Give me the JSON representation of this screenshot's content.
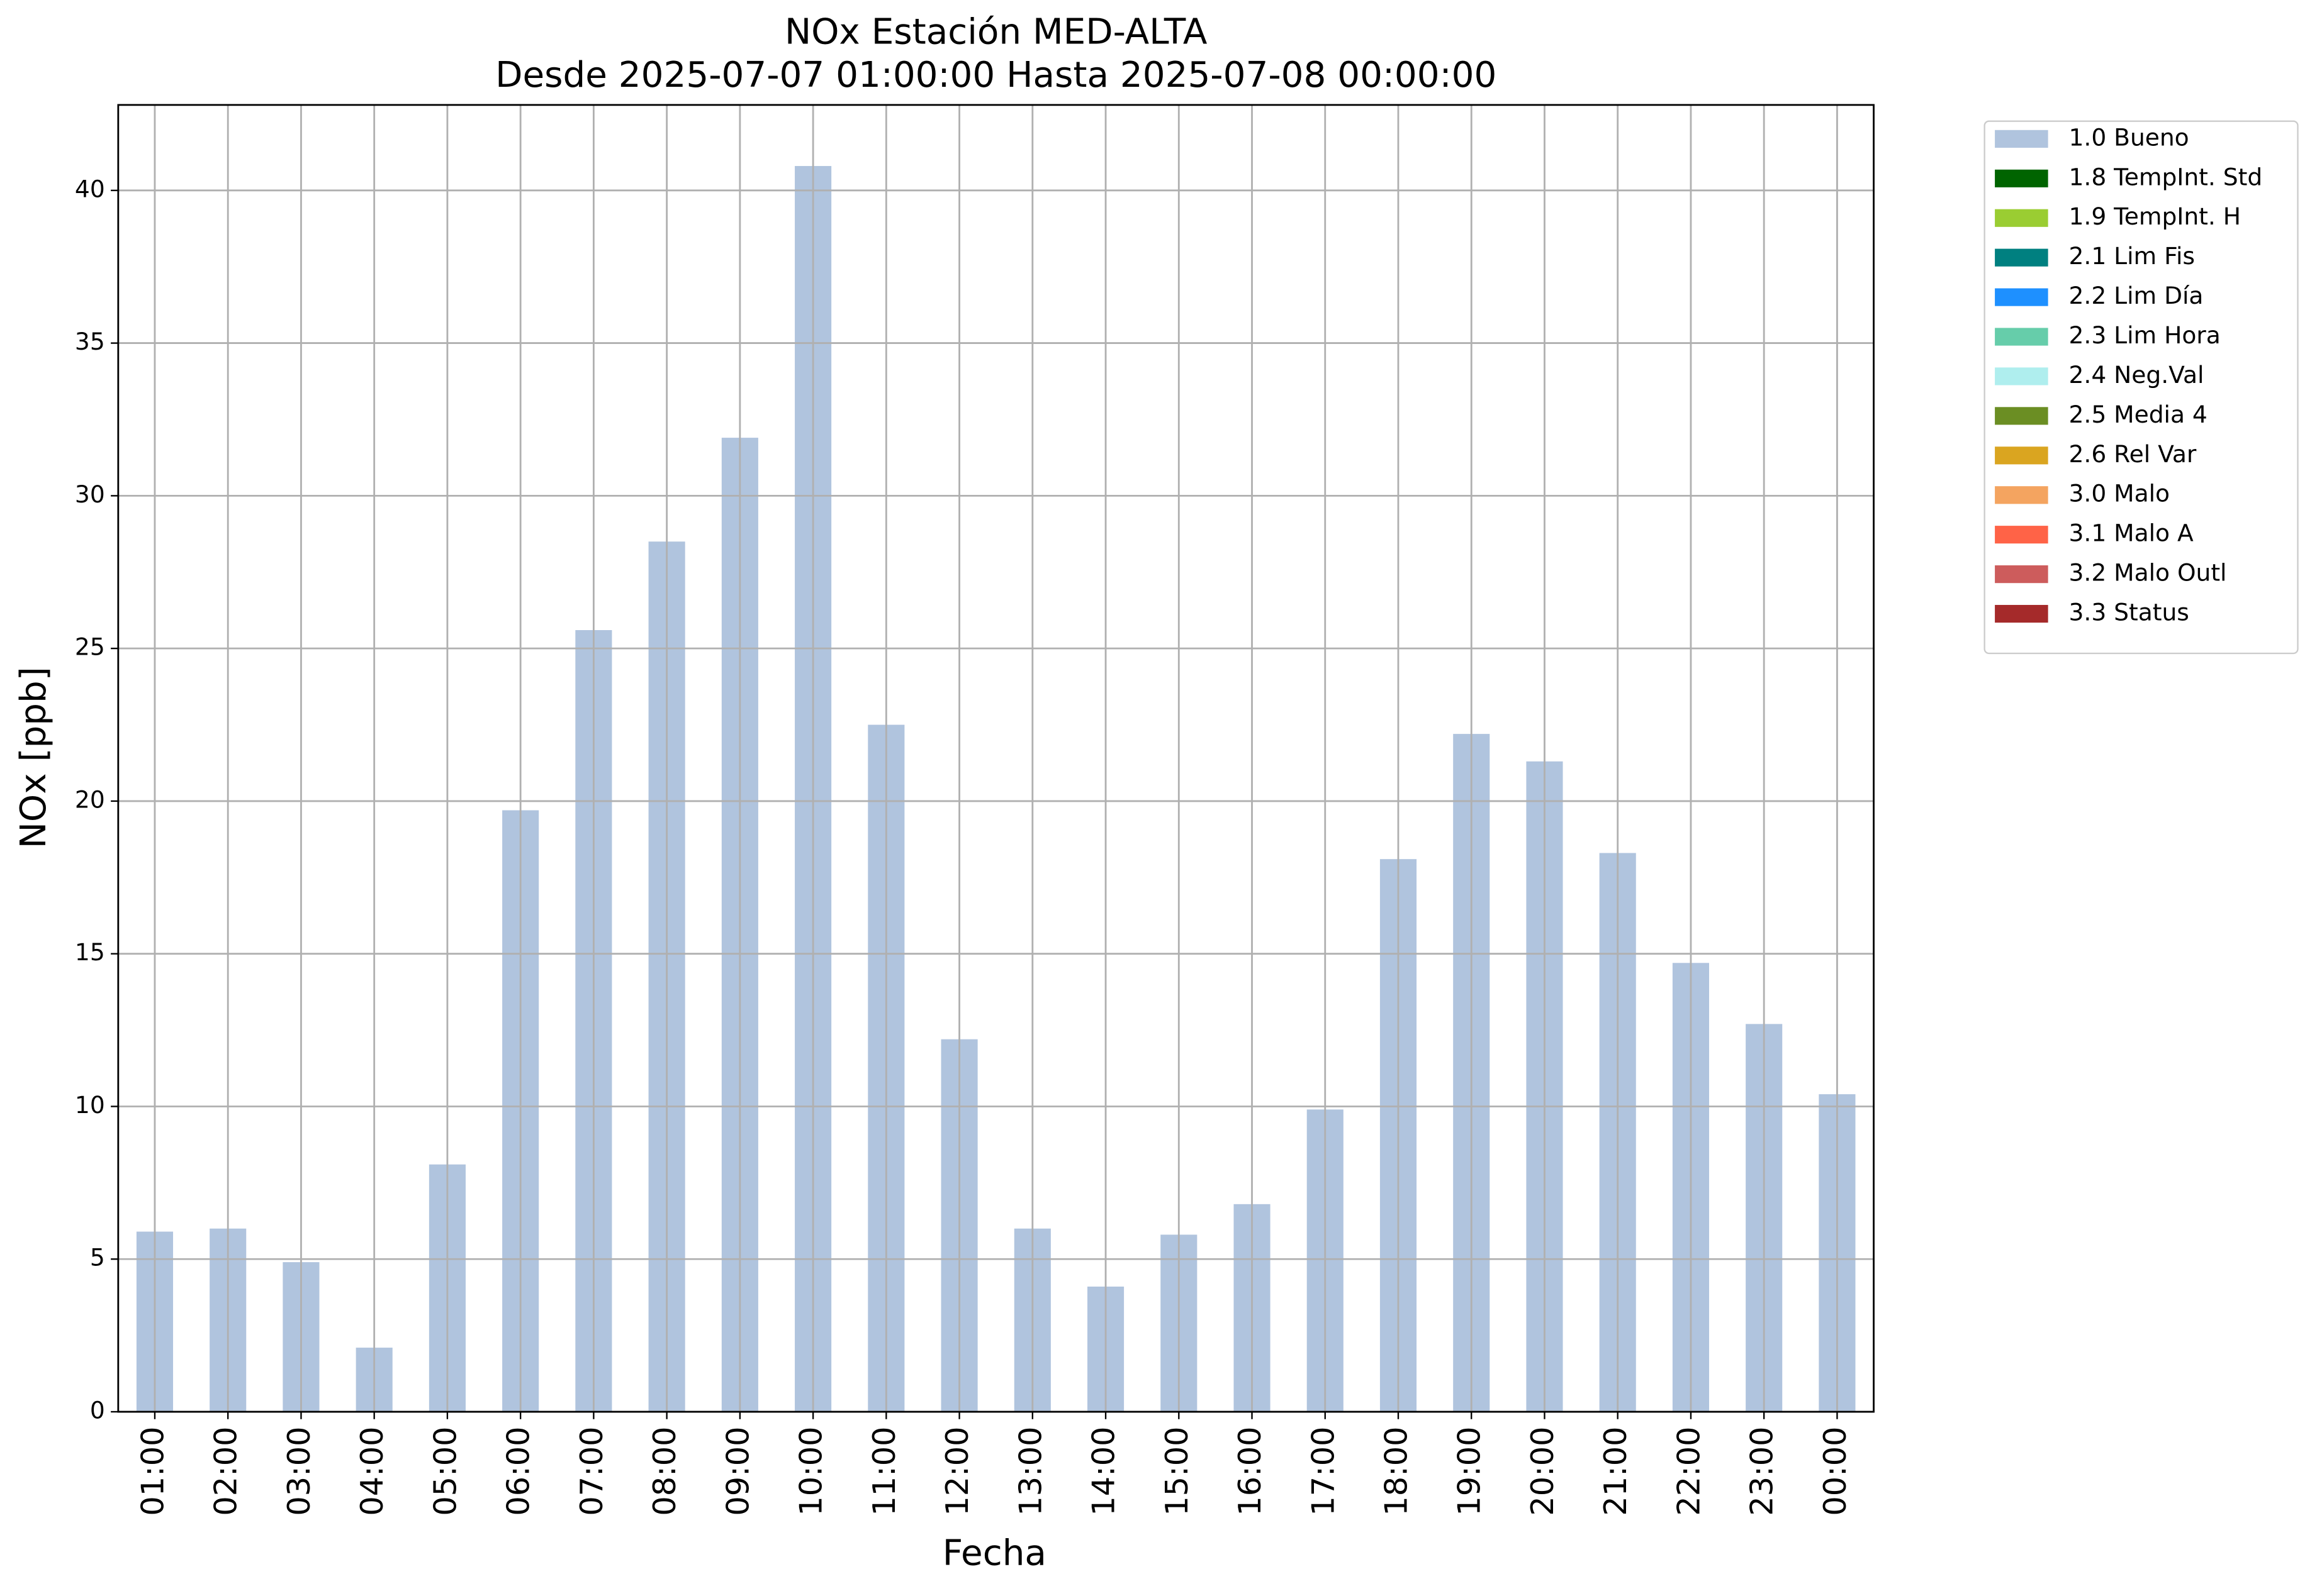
{
  "chart_data": {
    "type": "bar",
    "title": "NOx Estación MED-ALTA",
    "subtitle": "Desde 2025-07-07 01:00:00 Hasta 2025-07-08 00:00:00",
    "x_label": "Fecha",
    "y_label": "NOx [ppb]",
    "categories": [
      "01:00",
      "02:00",
      "03:00",
      "04:00",
      "05:00",
      "06:00",
      "07:00",
      "08:00",
      "09:00",
      "10:00",
      "11:00",
      "12:00",
      "13:00",
      "14:00",
      "15:00",
      "16:00",
      "17:00",
      "18:00",
      "19:00",
      "20:00",
      "21:00",
      "22:00",
      "23:00",
      "00:00"
    ],
    "series": [
      {
        "name": "1.0 Bueno",
        "color": "#b0c4de",
        "values": [
          5.9,
          6.0,
          4.9,
          2.1,
          8.1,
          19.7,
          25.6,
          28.5,
          31.9,
          40.8,
          22.5,
          12.2,
          6.0,
          4.1,
          5.8,
          6.8,
          9.9,
          18.1,
          22.2,
          21.3,
          18.3,
          14.7,
          12.7,
          10.4
        ]
      },
      {
        "name": "1.8 TempInt. Std",
        "color": "#006400"
      },
      {
        "name": "1.9 TempInt. H",
        "color": "#9acd32"
      },
      {
        "name": "2.1 Lim Fis",
        "color": "#008080"
      },
      {
        "name": "2.2 Lim Día",
        "color": "#1e90ff"
      },
      {
        "name": "2.3 Lim Hora",
        "color": "#66cdaa"
      },
      {
        "name": "2.4 Neg.Val",
        "color": "#afeeee"
      },
      {
        "name": "2.5 Media 4",
        "color": "#6b8e23"
      },
      {
        "name": "2.6 Rel Var",
        "color": "#daa520"
      },
      {
        "name": "3.0 Malo",
        "color": "#f4a460"
      },
      {
        "name": "3.1 Malo A",
        "color": "#ff6347"
      },
      {
        "name": "3.2 Malo Outl",
        "color": "#cd5c5c"
      },
      {
        "name": "3.3 Status",
        "color": "#a52a2a"
      }
    ],
    "ylim": [
      0,
      42.8
    ],
    "yticks": [
      0,
      5,
      10,
      15,
      20,
      25,
      30,
      35,
      40
    ],
    "grid": true,
    "legend": "outside-upper-right"
  }
}
